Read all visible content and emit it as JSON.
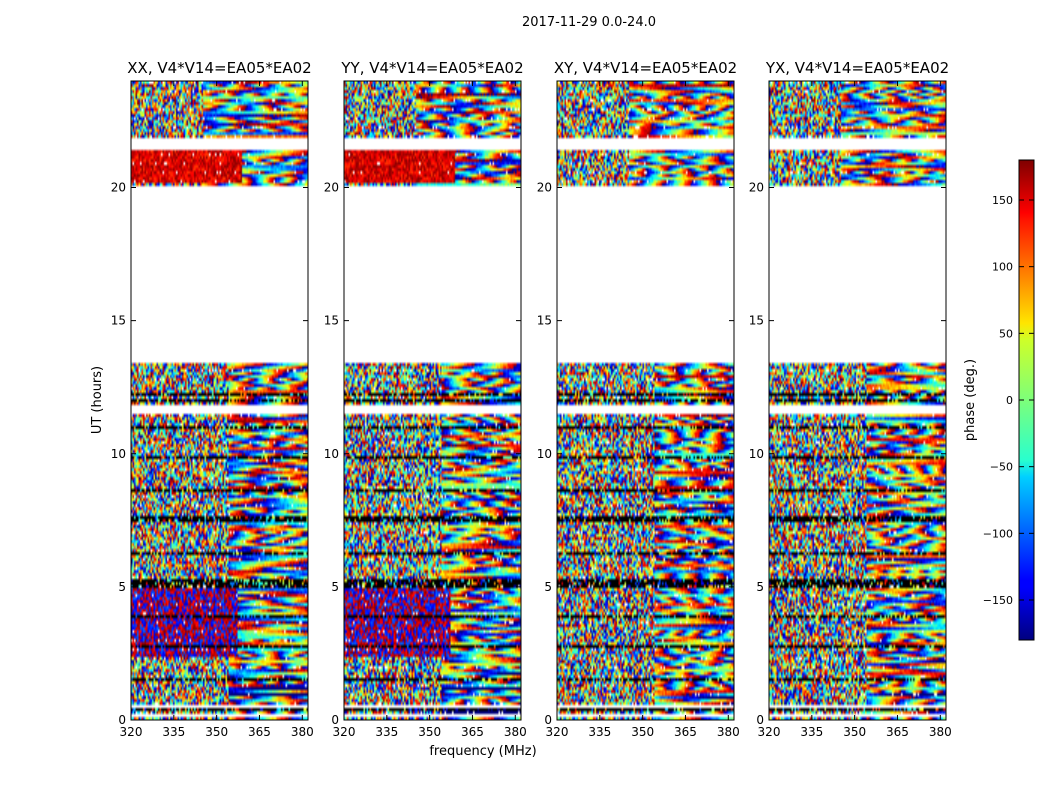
{
  "figure": {
    "suptitle": "2017-11-29 0.0-24.0",
    "xlabel": "frequency (MHz)",
    "ylabel": "UT (hours)",
    "colorbar_label": "phase (deg.)"
  },
  "chart_data": {
    "type": "heatmap",
    "xlim": [
      320,
      382
    ],
    "ylim": [
      0,
      24
    ],
    "x_ticks": [
      320,
      335,
      350,
      365,
      380
    ],
    "y_ticks": [
      0,
      5,
      10,
      15,
      20
    ],
    "colormap": "jet",
    "color_range": [
      -180,
      180
    ],
    "colorbar_ticks": [
      150,
      100,
      50,
      0,
      -50,
      -100,
      -150
    ],
    "data_gaps_hours": [
      [
        13.4,
        20.1
      ],
      [
        21.45,
        21.9
      ],
      [
        11.5,
        11.8
      ],
      [
        0.45,
        0.6
      ],
      [
        0.15,
        0.25
      ]
    ],
    "panels": [
      {
        "title": "XX, V4*V14=EA05*EA02",
        "pattern": "parallel-hand"
      },
      {
        "title": "YY, V4*V14=EA05*EA02",
        "pattern": "parallel-hand"
      },
      {
        "title": "XY, V4*V14=EA05*EA02",
        "pattern": "cross-hand"
      },
      {
        "title": "YX, V4*V14=EA05*EA02",
        "pattern": "cross-hand"
      }
    ]
  }
}
